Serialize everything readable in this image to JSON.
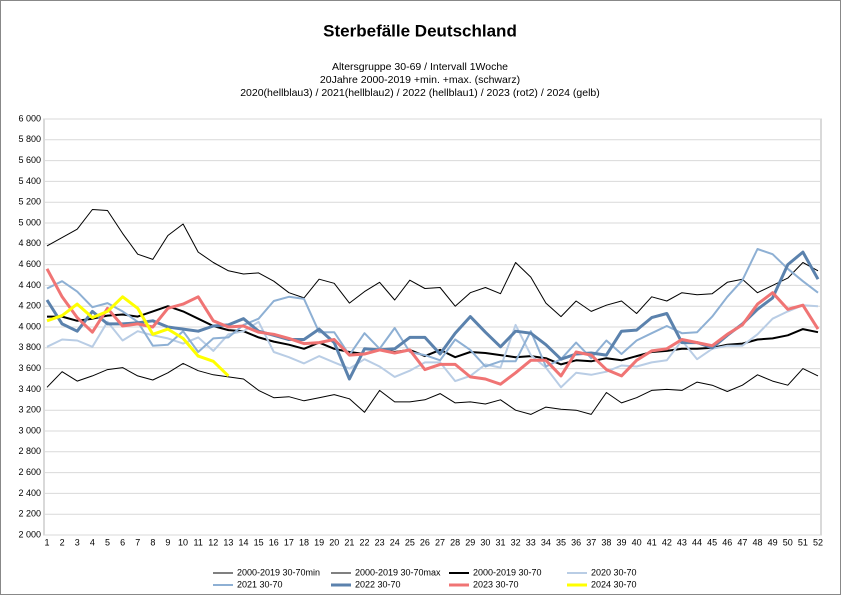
{
  "chart_data": {
    "type": "line",
    "title": "Sterbefälle Deutschland",
    "subtitle": [
      "Altersgruppe 30-69 / Intervall 1Woche",
      "20Jahre 2000-2019 +min. +max. (schwarz)",
      "2020(hellblau3) / 2021(hellblau2) / 2022 (hellblau1) / 2023 (rot2) / 2024 (gelb)"
    ],
    "categories": [
      1,
      2,
      3,
      4,
      5,
      6,
      7,
      8,
      9,
      10,
      11,
      12,
      13,
      14,
      15,
      16,
      17,
      18,
      19,
      20,
      21,
      22,
      23,
      24,
      25,
      26,
      27,
      28,
      29,
      30,
      31,
      32,
      33,
      34,
      35,
      36,
      37,
      38,
      39,
      40,
      41,
      42,
      43,
      44,
      45,
      46,
      47,
      48,
      49,
      50,
      51,
      52
    ],
    "ylim": [
      2000,
      6000
    ],
    "yticks": [
      {
        "value": 2000,
        "label": "2 000"
      },
      {
        "value": 2200,
        "label": "2 200"
      },
      {
        "value": 2400,
        "label": "2 400"
      },
      {
        "value": 2600,
        "label": "2 600"
      },
      {
        "value": 2800,
        "label": "2 800"
      },
      {
        "value": 3000,
        "label": "3 000"
      },
      {
        "value": 3200,
        "label": "3 200"
      },
      {
        "value": 3400,
        "label": "3 400"
      },
      {
        "value": 3600,
        "label": "3 600"
      },
      {
        "value": 3800,
        "label": "3 800"
      },
      {
        "value": 4000,
        "label": "4 000"
      },
      {
        "value": 4200,
        "label": "4 200"
      },
      {
        "value": 4400,
        "label": "4 400"
      },
      {
        "value": 4600,
        "label": "4 600"
      },
      {
        "value": 4800,
        "label": "4 800"
      },
      {
        "value": 5000,
        "label": "5 000"
      },
      {
        "value": 5200,
        "label": "5 200"
      },
      {
        "value": 5400,
        "label": "5 400"
      },
      {
        "value": 5600,
        "label": "5 600"
      },
      {
        "value": 5800,
        "label": "5 800"
      },
      {
        "value": 6000,
        "label": "6 000"
      }
    ],
    "grid": true,
    "legend": "bottom",
    "series": [
      {
        "name": "2000-2019 30-70min",
        "color": "#000000",
        "width": 1,
        "values": [
          3420,
          3570,
          3480,
          3530,
          3590,
          3610,
          3530,
          3490,
          3560,
          3650,
          3580,
          3540,
          3520,
          3500,
          3390,
          3320,
          3330,
          3290,
          3320,
          3350,
          3310,
          3180,
          3390,
          3280,
          3280,
          3300,
          3360,
          3270,
          3280,
          3260,
          3300,
          3200,
          3160,
          3230,
          3210,
          3200,
          3160,
          3370,
          3270,
          3320,
          3390,
          3400,
          3390,
          3470,
          3440,
          3380,
          3440,
          3540,
          3480,
          3440,
          3600,
          3530
        ]
      },
      {
        "name": "2000-2019 30-70max",
        "color": "#000000",
        "width": 1,
        "values": [
          4780,
          4860,
          4940,
          5130,
          5120,
          4900,
          4700,
          4650,
          4880,
          4990,
          4720,
          4620,
          4540,
          4510,
          4520,
          4440,
          4330,
          4280,
          4460,
          4420,
          4230,
          4340,
          4430,
          4260,
          4450,
          4370,
          4380,
          4200,
          4330,
          4380,
          4320,
          4620,
          4480,
          4230,
          4100,
          4250,
          4150,
          4210,
          4250,
          4130,
          4290,
          4250,
          4330,
          4310,
          4320,
          4430,
          4460,
          4330,
          4400,
          4470,
          4620,
          4540
        ]
      },
      {
        "name": "2000-2019 30-70",
        "color": "#000000",
        "width": 2,
        "values": [
          4100,
          4100,
          4060,
          4080,
          4110,
          4120,
          4100,
          4150,
          4200,
          4150,
          4080,
          4010,
          3970,
          3960,
          3900,
          3860,
          3830,
          3790,
          3850,
          3790,
          3760,
          3740,
          3780,
          3760,
          3780,
          3720,
          3780,
          3710,
          3760,
          3750,
          3730,
          3710,
          3720,
          3700,
          3640,
          3680,
          3670,
          3700,
          3680,
          3720,
          3760,
          3770,
          3790,
          3790,
          3800,
          3830,
          3840,
          3880,
          3890,
          3920,
          3980,
          3950
        ]
      },
      {
        "name": "2020 30-70",
        "color": "#b9cde5",
        "width": 2,
        "values": [
          3810,
          3880,
          3870,
          3810,
          4050,
          3870,
          3960,
          3920,
          3890,
          3840,
          3900,
          3770,
          3930,
          3960,
          4050,
          3760,
          3710,
          3650,
          3720,
          3660,
          3600,
          3690,
          3620,
          3520,
          3580,
          3660,
          3660,
          3480,
          3530,
          3640,
          3610,
          4020,
          3730,
          3610,
          3420,
          3560,
          3540,
          3570,
          3630,
          3620,
          3660,
          3680,
          3870,
          3690,
          3790,
          3820,
          3820,
          3930,
          4080,
          4150,
          4210,
          4200
        ]
      },
      {
        "name": "2021 30-70",
        "color": "#8eb0d4",
        "width": 2,
        "values": [
          4370,
          4440,
          4340,
          4190,
          4230,
          4150,
          4050,
          3820,
          3830,
          3960,
          3760,
          3890,
          3900,
          4020,
          4080,
          4250,
          4290,
          4270,
          3950,
          3950,
          3730,
          3940,
          3790,
          3990,
          3760,
          3730,
          3680,
          3880,
          3780,
          3620,
          3670,
          3670,
          3960,
          3620,
          3690,
          3850,
          3700,
          3870,
          3740,
          3870,
          3940,
          4010,
          3940,
          3950,
          4100,
          4290,
          4450,
          4750,
          4700,
          4560,
          4440,
          4330
        ]
      },
      {
        "name": "2022 30-70",
        "color": "#5b82ad",
        "width": 3,
        "values": [
          4260,
          4030,
          3960,
          4150,
          4030,
          4030,
          4040,
          4060,
          4000,
          3980,
          3960,
          4010,
          4020,
          4080,
          3960,
          3920,
          3880,
          3880,
          3980,
          3850,
          3500,
          3790,
          3780,
          3790,
          3900,
          3900,
          3740,
          3940,
          4100,
          3950,
          3810,
          3960,
          3940,
          3830,
          3690,
          3740,
          3750,
          3730,
          3960,
          3970,
          4090,
          4130,
          3850,
          3850,
          3800,
          3920,
          4030,
          4170,
          4280,
          4600,
          4720,
          4460
        ]
      },
      {
        "name": "2023 30-70",
        "color": "#f07474",
        "width": 3,
        "values": [
          4560,
          4290,
          4090,
          3950,
          4180,
          4010,
          4030,
          4000,
          4180,
          4220,
          4290,
          4060,
          4000,
          4010,
          3950,
          3930,
          3890,
          3840,
          3850,
          3880,
          3730,
          3740,
          3780,
          3750,
          3780,
          3590,
          3640,
          3640,
          3520,
          3500,
          3450,
          3560,
          3680,
          3680,
          3530,
          3760,
          3730,
          3590,
          3530,
          3680,
          3770,
          3790,
          3880,
          3850,
          3820,
          3930,
          4020,
          4220,
          4330,
          4170,
          4210,
          3980
        ]
      },
      {
        "name": "2024 30-70",
        "color": "#ffff00",
        "width": 3,
        "values": [
          4060,
          4110,
          4220,
          4090,
          4150,
          4290,
          4180,
          3930,
          3980,
          3890,
          3720,
          3670,
          3530,
          null,
          null,
          null,
          null,
          null,
          null,
          null,
          null,
          null,
          null,
          null,
          null,
          null,
          null,
          null,
          null,
          null,
          null,
          null,
          null,
          null,
          null,
          null,
          null,
          null,
          null,
          null,
          null,
          null,
          null,
          null,
          null,
          null,
          null,
          null,
          null,
          null,
          null,
          null
        ]
      }
    ]
  }
}
